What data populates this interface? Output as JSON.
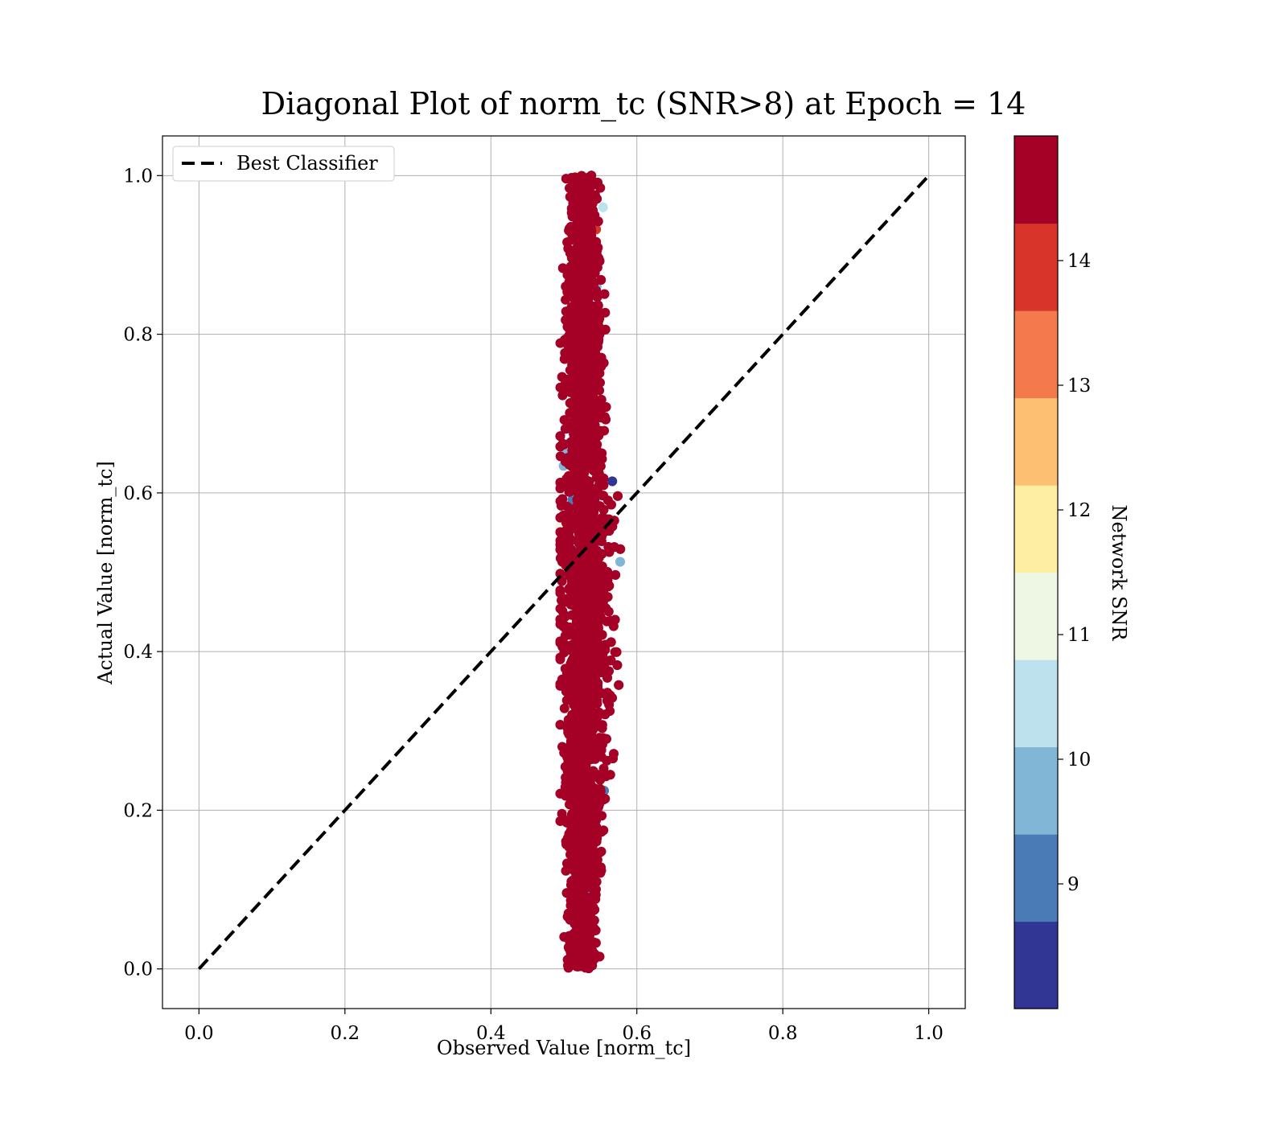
{
  "chart_data": {
    "type": "scatter",
    "title": "Diagonal Plot of norm_tc (SNR>8) at Epoch = 14",
    "xlabel": "Observed Value [norm_tc]",
    "ylabel": "Actual Value [norm_tc]",
    "xlim": [
      -0.05,
      1.05
    ],
    "ylim": [
      -0.05,
      1.05
    ],
    "xticks": [
      "0.0",
      "0.2",
      "0.4",
      "0.6",
      "0.8",
      "1.0"
    ],
    "yticks": [
      "0.0",
      "0.2",
      "0.4",
      "0.6",
      "0.8",
      "1.0"
    ],
    "grid": true,
    "legend": {
      "placement": "upper-left",
      "entries": [
        "Best Classifier"
      ]
    },
    "series": [
      {
        "name": "Best Classifier",
        "kind": "line",
        "style": "dashed",
        "color": "#000000",
        "x": [
          0.0,
          1.0
        ],
        "y": [
          0.0,
          1.0
        ]
      },
      {
        "kind": "scatter",
        "color_by": "Network SNR",
        "x_center": 0.525,
        "x_spread": 0.03,
        "y_range": [
          0.0,
          1.0
        ],
        "dominant_color": "#a50026"
      }
    ],
    "colorbar": {
      "label": "Network SNR",
      "range": [
        8,
        15
      ],
      "ticks": [
        "9",
        "10",
        "11",
        "12",
        "13",
        "14"
      ],
      "colors": [
        "#313695",
        "#4a7bb7",
        "#81b6d6",
        "#bde2ee",
        "#eef7e4",
        "#feeea2",
        "#fdbf71",
        "#f4794c",
        "#d83429",
        "#a50026"
      ]
    }
  }
}
